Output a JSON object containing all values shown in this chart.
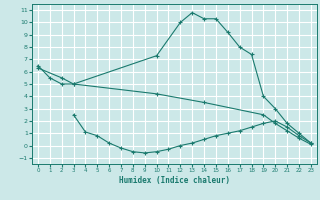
{
  "bg_color": "#cce8e8",
  "grid_color": "#ffffff",
  "line_color": "#1a7a6e",
  "xlabel": "Humidex (Indice chaleur)",
  "xlim": [
    -0.5,
    23.5
  ],
  "ylim": [
    -1.5,
    11.5
  ],
  "xticks": [
    0,
    1,
    2,
    3,
    4,
    5,
    6,
    7,
    8,
    9,
    10,
    11,
    12,
    13,
    14,
    15,
    16,
    17,
    18,
    19,
    20,
    21,
    22,
    23
  ],
  "yticks": [
    -1,
    0,
    1,
    2,
    3,
    4,
    5,
    6,
    7,
    8,
    9,
    10,
    11
  ],
  "line1_x": [
    0,
    1,
    2,
    3,
    10,
    12,
    13,
    14,
    15,
    16,
    17,
    18,
    19,
    20,
    21,
    22,
    23
  ],
  "line1_y": [
    6.5,
    5.5,
    5.0,
    5.0,
    7.3,
    10.0,
    10.8,
    10.3,
    10.3,
    9.2,
    8.0,
    7.4,
    4.0,
    3.0,
    1.8,
    1.0,
    0.2
  ],
  "line2_x": [
    0,
    2,
    3,
    10,
    14,
    19,
    20,
    21,
    22,
    23
  ],
  "line2_y": [
    6.3,
    5.5,
    5.0,
    4.2,
    3.5,
    2.5,
    1.8,
    1.2,
    0.6,
    0.1
  ],
  "line3_x": [
    3,
    4,
    5,
    6,
    7,
    8,
    9,
    10,
    11,
    12,
    13,
    14,
    15,
    16,
    17,
    18,
    19,
    20,
    21,
    22,
    23
  ],
  "line3_y": [
    2.5,
    1.1,
    0.8,
    0.2,
    -0.2,
    -0.5,
    -0.6,
    -0.5,
    -0.3,
    0.0,
    0.2,
    0.5,
    0.8,
    1.0,
    1.2,
    1.5,
    1.8,
    2.0,
    1.5,
    0.8,
    0.2
  ]
}
